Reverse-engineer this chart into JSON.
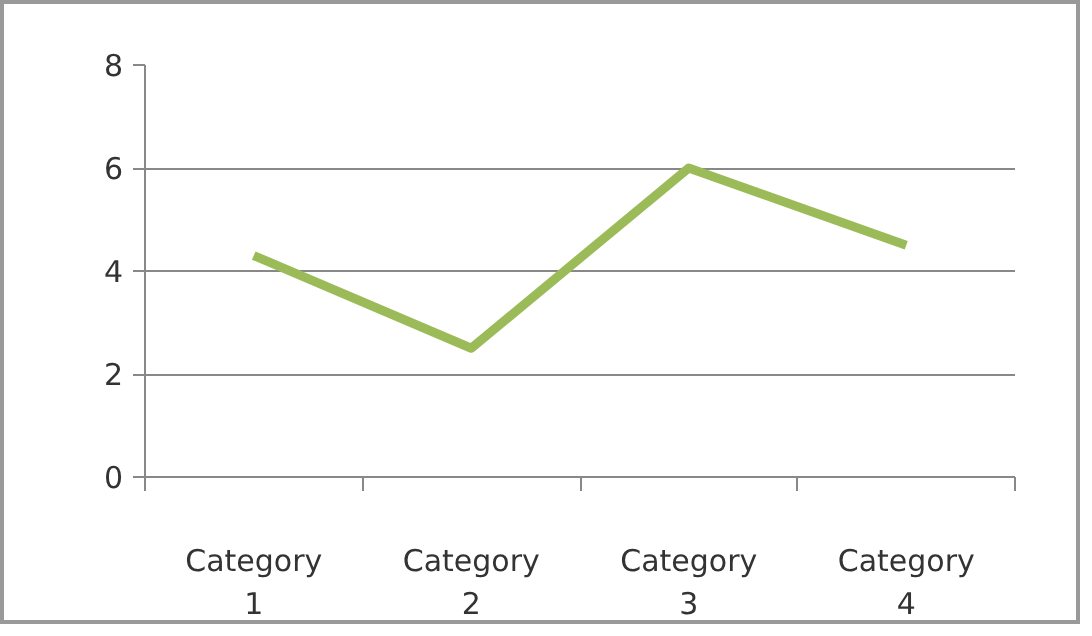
{
  "chart_data": {
    "type": "line",
    "categories": [
      "Category 1",
      "Category 2",
      "Category 3",
      "Category 4"
    ],
    "series": [
      {
        "color": "#9bbb59",
        "values": [
          4.3,
          2.5,
          6,
          4.5
        ]
      }
    ],
    "ylim": [
      0,
      8
    ],
    "yticks": [
      0,
      2,
      4,
      6,
      8
    ],
    "grid": "y",
    "marker": "none",
    "line_style": "solid"
  }
}
